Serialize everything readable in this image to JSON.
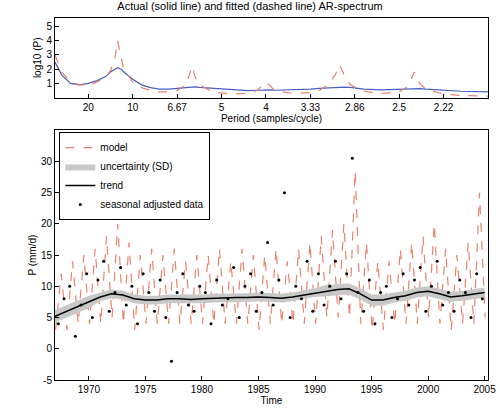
{
  "chart_data": [
    {
      "type": "line",
      "title": "Actual (solid line) and fitted (dashed line) AR-spectrum",
      "x_label": "Period (samples/cycle)",
      "y_label": "log10 (P)",
      "xlim": [
        0.0125,
        0.5
      ],
      "ylim": [
        0,
        5.6
      ],
      "xticks": [
        {
          "value": 0.05,
          "label": "20"
        },
        {
          "value": 0.1,
          "label": "10"
        },
        {
          "value": 0.15,
          "label": "6.67"
        },
        {
          "value": 0.2,
          "label": "5"
        },
        {
          "value": 0.25,
          "label": "4"
        },
        {
          "value": 0.3,
          "label": "3.33"
        },
        {
          "value": 0.35,
          "label": "2.86"
        },
        {
          "value": 0.4,
          "label": "2.5"
        },
        {
          "value": 0.45,
          "label": "2.22"
        }
      ],
      "yticks": [
        1,
        2,
        3,
        4,
        5
      ],
      "grid": false,
      "x": [
        0.0125,
        0.02,
        0.03,
        0.04,
        0.05,
        0.06,
        0.07,
        0.075,
        0.08,
        0.083,
        0.087,
        0.09,
        0.1,
        0.11,
        0.12,
        0.13,
        0.14,
        0.15,
        0.16,
        0.163,
        0.167,
        0.17,
        0.175,
        0.19,
        0.21,
        0.23,
        0.24,
        0.245,
        0.25,
        0.255,
        0.26,
        0.28,
        0.3,
        0.31,
        0.32,
        0.328,
        0.333,
        0.338,
        0.345,
        0.36,
        0.38,
        0.4,
        0.41,
        0.417,
        0.423,
        0.43,
        0.45,
        0.47,
        0.5
      ],
      "series": [
        {
          "color": "#4a5fc1",
          "line_style": "solid",
          "values": [
            2.5,
            1.6,
            1.0,
            0.9,
            1.0,
            1.2,
            1.5,
            1.8,
            2.0,
            2.1,
            2.0,
            1.8,
            1.3,
            0.9,
            0.7,
            0.6,
            0.6,
            0.65,
            0.7,
            0.75,
            0.75,
            0.75,
            0.72,
            0.65,
            0.55,
            0.5,
            0.52,
            0.54,
            0.55,
            0.54,
            0.52,
            0.55,
            0.6,
            0.65,
            0.7,
            0.74,
            0.75,
            0.74,
            0.72,
            0.6,
            0.55,
            0.6,
            0.64,
            0.65,
            0.64,
            0.6,
            0.5,
            0.45,
            0.4
          ]
        },
        {
          "color": "#e8836e",
          "line_style": "dashed",
          "values": [
            3.0,
            1.8,
            1.1,
            0.9,
            0.9,
            1.1,
            1.5,
            1.9,
            2.8,
            4.0,
            2.8,
            2.0,
            1.1,
            0.7,
            0.5,
            0.4,
            0.4,
            0.5,
            0.9,
            1.5,
            2.2,
            1.5,
            0.9,
            0.4,
            0.25,
            0.3,
            0.5,
            0.8,
            1.1,
            0.8,
            0.5,
            0.3,
            0.35,
            0.5,
            0.9,
            1.6,
            2.3,
            1.6,
            0.9,
            0.45,
            0.3,
            0.4,
            0.8,
            1.8,
            1.0,
            0.6,
            0.25,
            0.15,
            0.1
          ]
        }
      ]
    },
    {
      "type": "line",
      "x_label": "Time",
      "y_label": "P (mm/d)",
      "xlim": [
        1967,
        2005.3
      ],
      "ylim": [
        -5,
        35
      ],
      "xticks": [
        1970,
        1975,
        1980,
        1985,
        1990,
        1995,
        2000,
        2005
      ],
      "yticks": [
        -5,
        0,
        5,
        10,
        15,
        20,
        25,
        30
      ],
      "grid": false,
      "legend": "upper left",
      "series": [
        {
          "name": "model",
          "type": "line",
          "color": "#e8836e",
          "line_style": "dashed",
          "x": [
            1967.05,
            1967.55,
            1968.05,
            1968.55,
            1969.05,
            1969.55,
            1970.05,
            1970.55,
            1971.05,
            1971.55,
            1972.05,
            1972.55,
            1973.05,
            1973.55,
            1974.05,
            1974.55,
            1975.05,
            1975.55,
            1976.05,
            1976.55,
            1977.05,
            1977.55,
            1978.05,
            1978.55,
            1979.05,
            1979.55,
            1980.05,
            1980.55,
            1981.05,
            1981.55,
            1982.05,
            1982.55,
            1983.05,
            1983.55,
            1984.05,
            1984.55,
            1985.05,
            1985.55,
            1986.05,
            1986.55,
            1987.05,
            1987.55,
            1988.05,
            1988.55,
            1989.05,
            1989.55,
            1990.05,
            1990.55,
            1991.05,
            1991.55,
            1992.05,
            1992.55,
            1993.05,
            1993.55,
            1994.05,
            1994.55,
            1995.05,
            1995.55,
            1996.05,
            1996.55,
            1997.05,
            1997.55,
            1998.05,
            1998.55,
            1999.05,
            1999.55,
            2000.05,
            2000.55,
            2001.05,
            2001.55,
            2002.05,
            2002.55,
            2003.05,
            2003.55,
            2004.05,
            2004.55,
            2005.05
          ],
          "values": [
            3,
            12,
            3,
            14,
            4,
            15,
            4,
            16,
            4,
            18,
            5,
            20,
            4,
            17,
            3,
            15,
            4,
            16,
            4,
            15,
            4,
            16,
            4,
            14,
            4,
            15,
            4,
            15,
            4,
            16,
            4,
            14,
            4,
            16,
            4,
            15,
            3,
            15,
            4,
            16,
            4,
            14,
            4,
            16,
            4,
            17,
            4,
            18,
            5,
            19,
            5,
            20,
            5,
            28.5,
            4,
            17,
            3,
            14,
            3,
            14,
            4,
            16,
            4,
            17,
            4,
            18,
            5,
            20,
            4,
            16,
            3,
            15,
            4,
            17,
            4,
            25,
            5
          ]
        },
        {
          "name": "uncertainty (SD)",
          "type": "band",
          "color": "#c8c8c8",
          "x": [
            1967,
            1968,
            1969,
            1970,
            1971,
            1972,
            1973,
            1974,
            1975,
            1976,
            1977,
            1978,
            1979,
            1980,
            1981,
            1982,
            1983,
            1984,
            1985,
            1986,
            1987,
            1988,
            1989,
            1990,
            1991,
            1992,
            1993,
            1994,
            1995,
            1996,
            1997,
            1998,
            1999,
            2000,
            2001,
            2002,
            2003,
            2004,
            2005
          ],
          "lower": [
            4.2,
            5.0,
            5.8,
            6.5,
            7.6,
            8.1,
            7.9,
            7.3,
            7.1,
            7.1,
            7.3,
            7.3,
            7.2,
            7.3,
            7.4,
            7.4,
            7.5,
            7.5,
            7.6,
            7.5,
            7.4,
            7.6,
            7.9,
            8.3,
            8.4,
            8.6,
            8.7,
            7.9,
            6.9,
            6.9,
            7.4,
            7.7,
            8.2,
            8.4,
            8.0,
            7.5,
            7.7,
            8.0,
            8.2
          ],
          "upper": [
            6.2,
            7.0,
            7.8,
            8.5,
            9.0,
            9.5,
            9.3,
            8.7,
            8.5,
            8.5,
            8.7,
            8.7,
            8.6,
            8.7,
            8.8,
            8.8,
            8.9,
            8.9,
            9.0,
            8.9,
            8.8,
            9.0,
            9.3,
            9.7,
            10.2,
            10.4,
            10.5,
            9.7,
            8.7,
            8.7,
            9.0,
            9.3,
            9.8,
            10.0,
            9.6,
            9.1,
            9.3,
            9.6,
            9.8
          ]
        },
        {
          "name": "trend",
          "type": "line",
          "color": "#000000",
          "line_style": "solid",
          "x": [
            1967,
            1968,
            1969,
            1970,
            1971,
            1972,
            1973,
            1974,
            1975,
            1976,
            1977,
            1978,
            1979,
            1980,
            1981,
            1982,
            1983,
            1984,
            1985,
            1986,
            1987,
            1988,
            1989,
            1990,
            1991,
            1992,
            1993,
            1994,
            1995,
            1996,
            1997,
            1998,
            1999,
            2000,
            2001,
            2002,
            2003,
            2004,
            2005
          ],
          "values": [
            5.2,
            6,
            6.8,
            7.5,
            8.3,
            8.8,
            8.6,
            8,
            7.8,
            7.8,
            8,
            8,
            7.9,
            8,
            8.1,
            8.1,
            8.2,
            8.2,
            8.3,
            8.2,
            8.1,
            8.3,
            8.6,
            9,
            9.3,
            9.5,
            9.6,
            8.8,
            7.8,
            7.8,
            8.2,
            8.5,
            9,
            9.2,
            8.8,
            8.3,
            8.5,
            8.8,
            9.0
          ]
        },
        {
          "name": "seasonal adjusted data",
          "type": "scatter",
          "color": "#000000",
          "marker": "dot",
          "x": [
            1967.3,
            1967.8,
            1968.3,
            1968.8,
            1969.3,
            1969.8,
            1970.3,
            1970.8,
            1971.3,
            1971.8,
            1972.3,
            1972.8,
            1973.3,
            1973.8,
            1974.3,
            1974.8,
            1975.3,
            1975.8,
            1976.3,
            1976.8,
            1977.3,
            1977.8,
            1978.3,
            1978.8,
            1979.3,
            1979.8,
            1980.3,
            1980.8,
            1981.3,
            1981.8,
            1982.3,
            1982.8,
            1983.3,
            1983.8,
            1984.3,
            1984.8,
            1985.3,
            1985.8,
            1986.3,
            1986.8,
            1987.3,
            1987.8,
            1988.3,
            1988.8,
            1989.3,
            1989.8,
            1990.3,
            1990.8,
            1991.3,
            1991.8,
            1992.3,
            1992.8,
            1993.3,
            1993.8,
            1994.3,
            1994.8,
            1995.3,
            1995.8,
            1996.3,
            1996.8,
            1997.3,
            1997.8,
            1998.3,
            1998.8,
            1999.3,
            1999.8,
            2000.3,
            2000.8,
            2001.3,
            2001.8,
            2002.3,
            2002.8,
            2003.3,
            2003.8,
            2004.3,
            2004.8
          ],
          "values": [
            4,
            8,
            10,
            2,
            7,
            12,
            5,
            11,
            14,
            6,
            9,
            13,
            7,
            10,
            4,
            12,
            9,
            6,
            11,
            5,
            -2,
            9,
            12,
            7,
            6,
            10,
            9,
            4,
            11,
            7,
            8,
            13,
            5,
            10,
            12,
            6,
            9,
            17,
            7,
            11,
            25,
            5,
            10,
            8,
            14,
            6,
            12,
            7,
            10,
            14,
            8,
            12,
            30.5,
            9,
            6,
            11,
            4,
            9,
            10,
            5,
            8,
            12,
            7,
            11,
            13,
            6,
            10,
            14,
            7,
            9,
            6,
            11,
            9,
            5,
            12,
            8
          ]
        }
      ]
    }
  ]
}
